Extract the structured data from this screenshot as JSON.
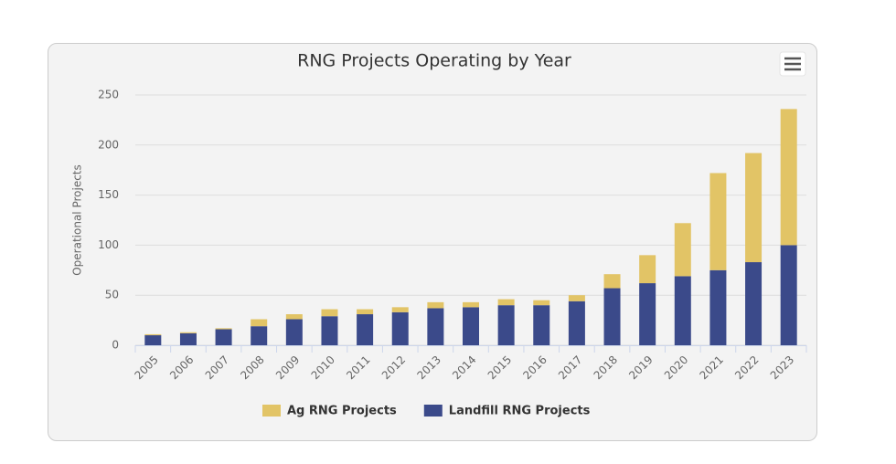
{
  "chart_data": {
    "type": "stacked_bar",
    "title": "RNG Projects Operating by Year",
    "y_label": "Operational Projects",
    "categories": [
      "2005",
      "2006",
      "2007",
      "2008",
      "2009",
      "2010",
      "2011",
      "2012",
      "2013",
      "2014",
      "2015",
      "2016",
      "2017",
      "2018",
      "2019",
      "2020",
      "2021",
      "2022",
      "2023"
    ],
    "series": [
      {
        "name": "Ag RNG Projects",
        "color": "#e2c466",
        "values": [
          1,
          1,
          1,
          7,
          5,
          7,
          5,
          5,
          6,
          5,
          6,
          5,
          6,
          14,
          28,
          53,
          97,
          109,
          136
        ]
      },
      {
        "name": "Landfill RNG Projects",
        "color": "#3b4a8a",
        "values": [
          10,
          12,
          16,
          19,
          26,
          29,
          31,
          33,
          37,
          38,
          40,
          40,
          44,
          57,
          62,
          69,
          75,
          83,
          100
        ]
      }
    ],
    "ylim": [
      0,
      250
    ],
    "yticks": [
      0,
      50,
      100,
      150,
      200,
      250
    ],
    "grid": true
  }
}
